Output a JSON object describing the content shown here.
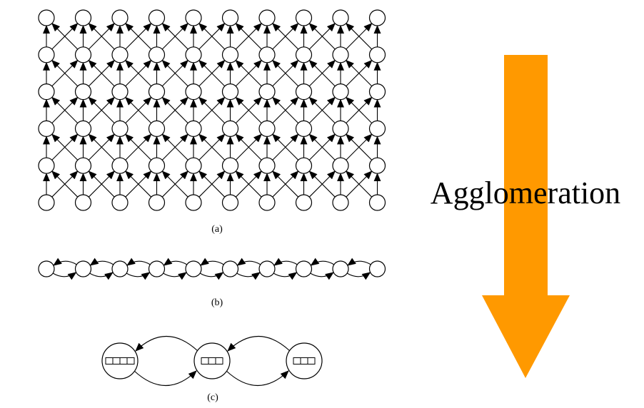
{
  "diagram": {
    "panel_a": {
      "label": "(a)",
      "columns": 10,
      "rows": 6
    },
    "panel_b": {
      "label": "(b)",
      "nodes": 10
    },
    "panel_c": {
      "label": "(c)",
      "nodes": 3,
      "cells_per_node": [
        4,
        3,
        3
      ]
    },
    "arrow": {
      "label": "Agglomeration",
      "color": "#ff9900"
    }
  }
}
